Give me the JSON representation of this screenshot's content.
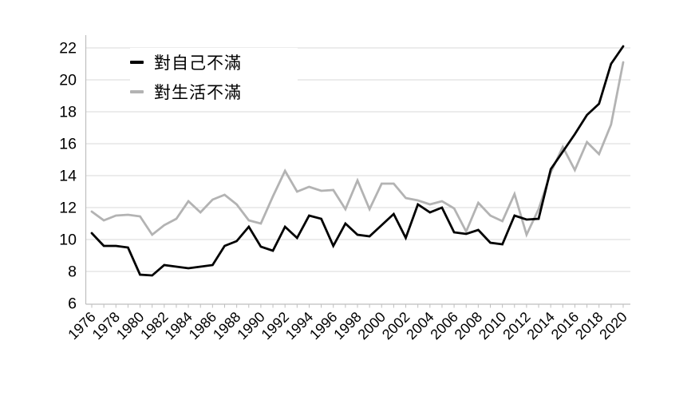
{
  "page": {
    "background": "#ffffff"
  },
  "chart_data": {
    "type": "line",
    "title": "",
    "xlabel": "",
    "ylabel": "",
    "x": [
      1976,
      1977,
      1978,
      1979,
      1980,
      1981,
      1982,
      1983,
      1984,
      1985,
      1986,
      1987,
      1988,
      1989,
      1990,
      1991,
      1992,
      1993,
      1994,
      1995,
      1996,
      1997,
      1998,
      1999,
      2000,
      2001,
      2002,
      2003,
      2004,
      2005,
      2006,
      2007,
      2008,
      2009,
      2010,
      2011,
      2012,
      2013,
      2014,
      2015,
      2016,
      2017,
      2018,
      2019,
      2020
    ],
    "x_tick_labels": [
      "1976",
      "1978",
      "1980",
      "1982",
      "1984",
      "1986",
      "1988",
      "1990",
      "1992",
      "1994",
      "1996",
      "1998",
      "2000",
      "2002",
      "2004",
      "2006",
      "2008",
      "2010",
      "2012",
      "2014",
      "2016",
      "2018",
      "2020"
    ],
    "yticks": [
      6,
      8,
      10,
      12,
      14,
      16,
      18,
      20,
      22
    ],
    "ylim": [
      6,
      22
    ],
    "ytick_step": 2,
    "grid": "horizontal",
    "legend_position": "top-left-inside",
    "series": [
      {
        "name": "對自己不滿",
        "color": "#000000",
        "values": [
          10.4,
          9.6,
          9.6,
          9.5,
          7.8,
          7.75,
          8.4,
          8.3,
          8.2,
          8.3,
          8.4,
          9.6,
          9.9,
          10.8,
          9.55,
          9.3,
          10.8,
          10.1,
          11.5,
          11.3,
          9.6,
          11.0,
          10.3,
          10.2,
          10.9,
          11.6,
          10.1,
          12.2,
          11.7,
          12.0,
          10.45,
          10.35,
          10.6,
          9.8,
          9.7,
          11.5,
          11.25,
          11.3,
          14.4,
          15.5,
          16.6,
          17.8,
          18.5,
          21.0,
          22.1
        ]
      },
      {
        "name": "對生活不滿",
        "color": "#b3b3b3",
        "values": [
          11.75,
          11.2,
          11.5,
          11.55,
          11.45,
          10.3,
          10.9,
          11.3,
          12.4,
          11.7,
          12.5,
          12.8,
          12.2,
          11.2,
          11.0,
          12.7,
          14.3,
          13.0,
          13.3,
          13.05,
          13.1,
          11.9,
          13.7,
          11.9,
          13.5,
          13.5,
          12.6,
          12.45,
          12.2,
          12.4,
          11.95,
          10.5,
          12.3,
          11.5,
          11.15,
          12.85,
          10.3,
          11.9,
          14.2,
          15.8,
          14.35,
          16.1,
          15.35,
          17.2,
          21.1
        ]
      }
    ],
    "colors": {
      "axis": "#bfbfbf",
      "gridline": "#d9d9d9",
      "tick_label": "#000000"
    }
  }
}
